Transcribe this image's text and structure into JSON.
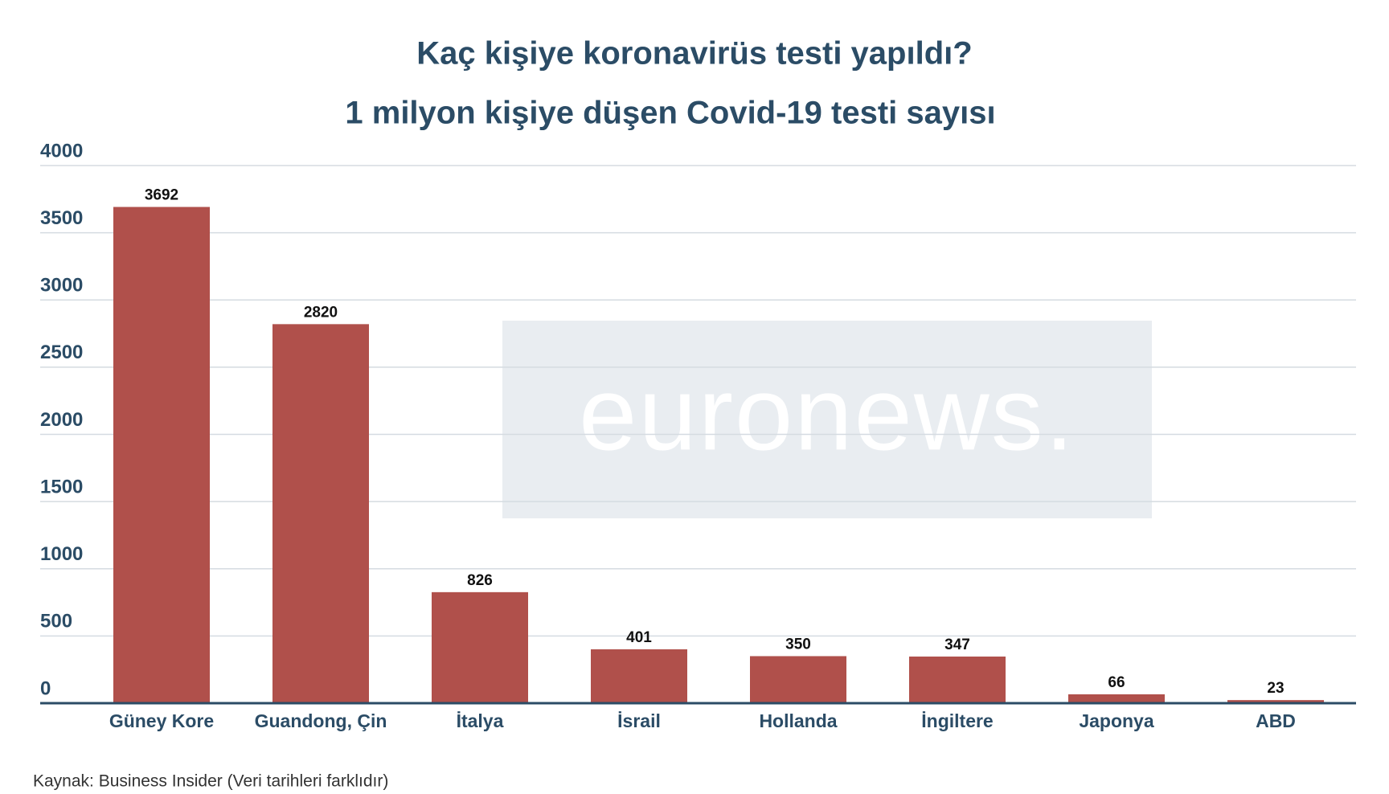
{
  "chart_data": {
    "type": "bar",
    "title": "Kaç kişiye koronavirüs testi yapıldı?",
    "subtitle": "1 milyon kişiye düşen Covid-19 testi sayısı",
    "categories": [
      "Güney Kore",
      "Guandong, Çin",
      "İtalya",
      "İsrail",
      "Hollanda",
      "İngiltere",
      "Japonya",
      "ABD"
    ],
    "values": [
      3692,
      2820,
      826,
      401,
      350,
      347,
      66,
      23
    ],
    "color": "#b0504b",
    "ylim": [
      0,
      4000
    ],
    "yticks": [
      0,
      500,
      1000,
      1500,
      2000,
      2500,
      3000,
      3500,
      4000
    ],
    "grid": true,
    "source": "Kaynak: Business Insider (Veri tarihleri farklıdır)",
    "watermark": "euronews."
  }
}
